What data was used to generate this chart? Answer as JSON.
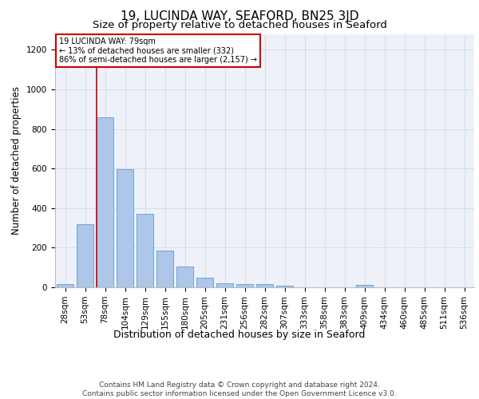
{
  "title": "19, LUCINDA WAY, SEAFORD, BN25 3JD",
  "subtitle": "Size of property relative to detached houses in Seaford",
  "xlabel": "Distribution of detached houses by size in Seaford",
  "ylabel": "Number of detached properties",
  "bar_labels": [
    "28sqm",
    "53sqm",
    "78sqm",
    "104sqm",
    "129sqm",
    "155sqm",
    "180sqm",
    "205sqm",
    "231sqm",
    "256sqm",
    "282sqm",
    "307sqm",
    "333sqm",
    "358sqm",
    "383sqm",
    "409sqm",
    "434sqm",
    "460sqm",
    "485sqm",
    "511sqm",
    "536sqm"
  ],
  "bar_values": [
    15,
    320,
    860,
    598,
    370,
    185,
    103,
    47,
    22,
    18,
    18,
    10,
    0,
    0,
    0,
    12,
    0,
    0,
    0,
    0,
    0
  ],
  "bar_color": "#aec6e8",
  "bar_edge_color": "#5b9bd5",
  "marker_bar_index": 2,
  "marker_line_color": "#cc0000",
  "annotation_text": "19 LUCINDA WAY: 79sqm\n← 13% of detached houses are smaller (332)\n86% of semi-detached houses are larger (2,157) →",
  "annotation_box_color": "#cc0000",
  "ylim": [
    0,
    1280
  ],
  "yticks": [
    0,
    200,
    400,
    600,
    800,
    1000,
    1200
  ],
  "grid_color": "#d0d8e8",
  "background_color": "#eef2f8",
  "footer_text": "Contains HM Land Registry data © Crown copyright and database right 2024.\nContains public sector information licensed under the Open Government Licence v3.0.",
  "title_fontsize": 11,
  "subtitle_fontsize": 9.5,
  "ylabel_fontsize": 8.5,
  "xlabel_fontsize": 9,
  "tick_fontsize": 7.5,
  "footer_fontsize": 6.5
}
